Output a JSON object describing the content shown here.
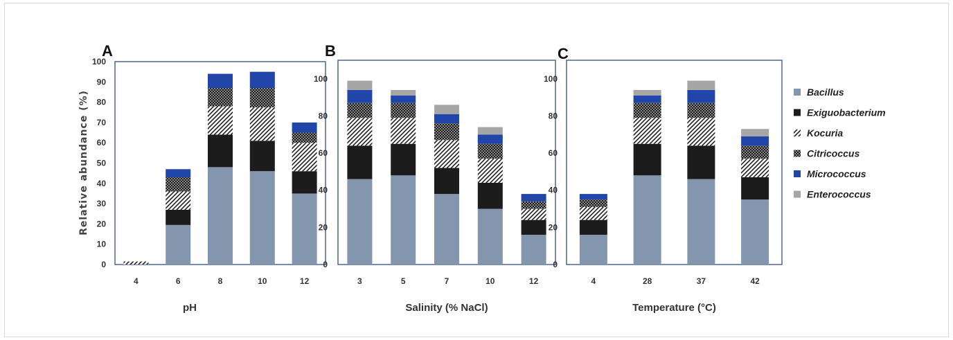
{
  "chart_data": [
    {
      "type": "bar",
      "stacked": true,
      "panel_label": "A",
      "xlabel": "pH",
      "ylabel": "Relative abundance  (%)",
      "categories": [
        "4",
        "6",
        "8",
        "10",
        "12"
      ],
      "ylim": [
        0,
        100
      ],
      "yticks": [
        0,
        10,
        20,
        30,
        40,
        50,
        60,
        70,
        80,
        90,
        100
      ],
      "series": [
        {
          "name": "Bacillus",
          "values": [
            0,
            19.5,
            48,
            46,
            35
          ]
        },
        {
          "name": "Exiguobacterium",
          "values": [
            0,
            7.5,
            16,
            15,
            11
          ]
        },
        {
          "name": "Kocuria",
          "values": [
            1.5,
            9,
            14,
            16.5,
            14
          ]
        },
        {
          "name": "Citricoccus",
          "values": [
            0,
            7,
            9,
            9.5,
            5
          ]
        },
        {
          "name": "Micrococcus",
          "values": [
            0,
            4,
            7,
            8,
            5
          ]
        },
        {
          "name": "Enterococcus",
          "values": [
            0,
            0,
            0,
            0,
            0
          ]
        }
      ]
    },
    {
      "type": "bar",
      "stacked": true,
      "panel_label": "B",
      "xlabel": "Salinity (% NaCl)",
      "ylabel": "",
      "categories": [
        "3",
        "5",
        "7",
        "10",
        "12"
      ],
      "ylim": [
        0,
        110
      ],
      "yticks": [
        0,
        20,
        40,
        60,
        80,
        100
      ],
      "series": [
        {
          "name": "Bacillus",
          "values": [
            46,
            48,
            38,
            30,
            16
          ]
        },
        {
          "name": "Exiguobacterium",
          "values": [
            18,
            17,
            14,
            14,
            8
          ]
        },
        {
          "name": "Kocuria",
          "values": [
            15,
            14,
            15,
            13,
            6
          ]
        },
        {
          "name": "Citricoccus",
          "values": [
            8,
            8,
            9,
            8,
            4
          ]
        },
        {
          "name": "Micrococcus",
          "values": [
            7,
            4,
            5,
            5,
            4
          ]
        },
        {
          "name": "Enterococcus",
          "values": [
            5,
            3,
            5,
            4,
            0
          ]
        }
      ]
    },
    {
      "type": "bar",
      "stacked": true,
      "panel_label": "C",
      "xlabel": "Temperature (°C)",
      "ylabel": "",
      "categories": [
        "4",
        "28",
        "37",
        "42"
      ],
      "ylim": [
        0,
        110
      ],
      "yticks": [
        0,
        20,
        40,
        60,
        80,
        100
      ],
      "series": [
        {
          "name": "Bacillus",
          "values": [
            16,
            48,
            46,
            35
          ]
        },
        {
          "name": "Exiguobacterium",
          "values": [
            8,
            17,
            18,
            12
          ]
        },
        {
          "name": "Kocuria",
          "values": [
            7,
            14,
            15,
            10
          ]
        },
        {
          "name": "Citricoccus",
          "values": [
            4,
            8,
            8,
            7
          ]
        },
        {
          "name": "Micrococcus",
          "values": [
            3,
            4,
            7,
            5
          ]
        },
        {
          "name": "Enterococcus",
          "values": [
            0,
            3,
            5,
            4
          ]
        }
      ]
    }
  ],
  "legend": {
    "placement": "right",
    "items": [
      {
        "name": "Bacillus",
        "pattern": "solid-gray-blue"
      },
      {
        "name": "Exiguobacterium",
        "pattern": "solid-black"
      },
      {
        "name": "Kocuria",
        "pattern": "diagonal-hatch"
      },
      {
        "name": "Citricoccus",
        "pattern": "checker"
      },
      {
        "name": "Micrococcus",
        "pattern": "solid-blue"
      },
      {
        "name": "Enterococcus",
        "pattern": "solid-light-gray"
      }
    ]
  },
  "colors": {
    "Bacillus": "#8496ae",
    "Exiguobacterium": "#1c1c1c",
    "Micrococcus": "#2145a8",
    "Enterococcus": "#a6a6a6",
    "panel_border": "#3e5b8a"
  }
}
